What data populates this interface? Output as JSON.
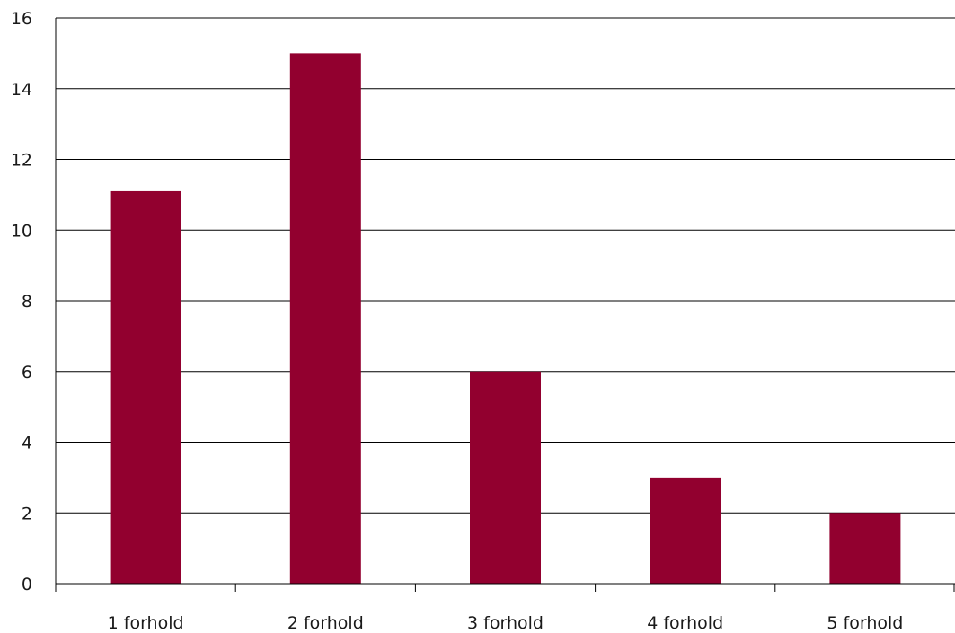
{
  "chart_data": {
    "type": "bar",
    "categories": [
      "1 forhold",
      "2 forhold",
      "3 forhold",
      "4 forhold",
      "5 forhold"
    ],
    "values": [
      11.1,
      15,
      6,
      3,
      2
    ],
    "ylim": [
      0,
      16
    ],
    "yticks": [
      "0",
      "2",
      "4",
      "6",
      "8",
      "10",
      "12",
      "14",
      "16"
    ],
    "grid": true,
    "legend": "none",
    "bar_color": "#92002f",
    "grid_color": "#000000"
  }
}
